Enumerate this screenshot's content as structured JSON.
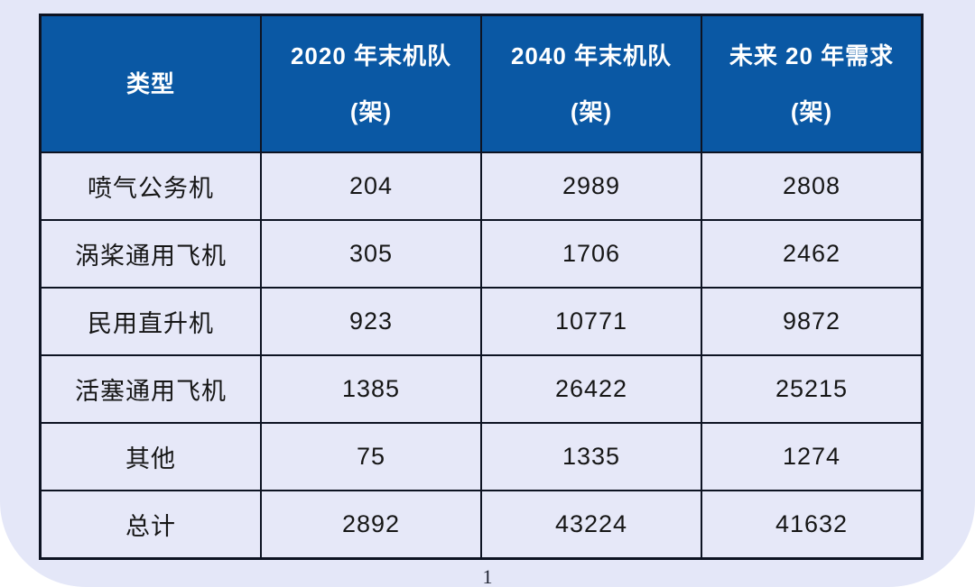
{
  "page": {
    "page_number": "1",
    "slide_background": "#e4e7f8",
    "canvas_background": "#ffffff"
  },
  "table": {
    "style": {
      "header_background": "#0a58a4",
      "header_text_color": "#ffffff",
      "cell_background": "#e6e8f8",
      "body_text_color": "#161616",
      "border_color": "#0d1322"
    },
    "headers": [
      {
        "label": "类型",
        "unit": ""
      },
      {
        "label": "2020 年末机队",
        "unit": "(架)"
      },
      {
        "label": "2040 年末机队",
        "unit": "(架)"
      },
      {
        "label": "未来 20 年需求",
        "unit": "(架)"
      }
    ],
    "rows": [
      [
        "喷气公务机",
        "204",
        "2989",
        "2808"
      ],
      [
        "涡桨通用飞机",
        "305",
        "1706",
        "2462"
      ],
      [
        "民用直升机",
        "923",
        "10771",
        "9872"
      ],
      [
        "活塞通用飞机",
        "1385",
        "26422",
        "25215"
      ],
      [
        "其他",
        "75",
        "1335",
        "1274"
      ],
      [
        "总计",
        "2892",
        "43224",
        "41632"
      ]
    ]
  },
  "chart_data": {
    "type": "table",
    "title": "",
    "columns": [
      "类型",
      "2020 年末机队 (架)",
      "2040 年末机队 (架)",
      "未来 20 年需求 (架)"
    ],
    "categories": [
      "喷气公务机",
      "涡桨通用飞机",
      "民用直升机",
      "活塞通用飞机",
      "其他",
      "总计"
    ],
    "series": [
      {
        "name": "2020 年末机队 (架)",
        "values": [
          204,
          305,
          923,
          1385,
          75,
          2892
        ]
      },
      {
        "name": "2040 年末机队 (架)",
        "values": [
          2989,
          1706,
          10771,
          26422,
          1335,
          43224
        ]
      },
      {
        "name": "未来 20 年需求 (架)",
        "values": [
          2808,
          2462,
          9872,
          25215,
          1274,
          41632
        ]
      }
    ]
  }
}
